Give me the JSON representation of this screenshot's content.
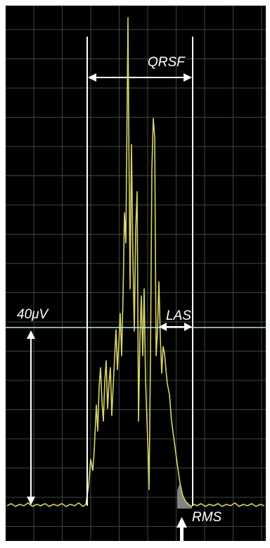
{
  "chart_data": {
    "type": "line",
    "title": "",
    "xlabel": "",
    "ylabel": "",
    "grid": true,
    "colors": {
      "background": "#000000",
      "frame": "#ffffff",
      "grid": "#3a4a3a",
      "signal": "#d8d46a",
      "rms_fill": "#9a9a9a",
      "threshold": "#bfe3e8",
      "markers": "#ffffff"
    },
    "annotations": {
      "qrsf": "QRSF",
      "las": "LAS",
      "amplitude": "40μV",
      "rms": "RMS"
    }
  }
}
